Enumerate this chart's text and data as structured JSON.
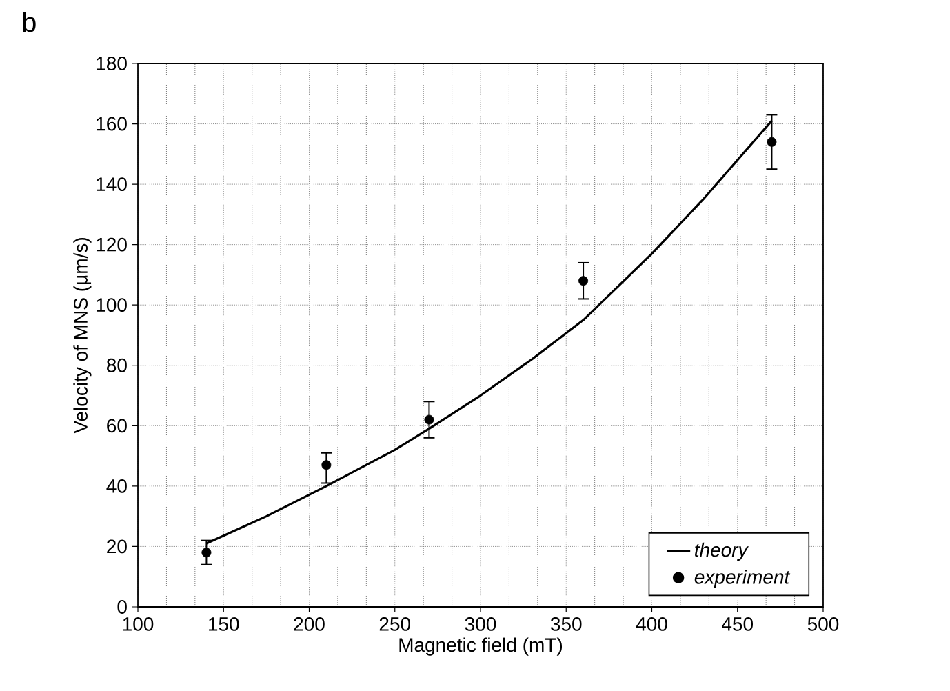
{
  "chart_data": {
    "type": "scatter",
    "xlabel": "Magnetic field (mT)",
    "ylabel": "Velocity of MNS (μm/s)",
    "annotations": [
      "b"
    ],
    "xlim": [
      100,
      500
    ],
    "xticks": [
      100,
      150,
      200,
      250,
      300,
      350,
      400,
      450,
      500
    ],
    "ylim": [
      0,
      180
    ],
    "yticks": [
      0,
      20,
      40,
      60,
      80,
      100,
      120,
      140,
      160,
      180
    ],
    "grid": true,
    "legend": "bottom right",
    "series": [
      {
        "name": "theory",
        "type": "line",
        "color": "#000000",
        "marker": "none",
        "line_style": "solid",
        "x": [
          140,
          175,
          210,
          250,
          270,
          300,
          330,
          360,
          400,
          430,
          470
        ],
        "values": [
          21,
          30,
          40,
          52,
          59,
          70,
          82,
          95,
          117,
          135,
          161
        ]
      },
      {
        "name": "experiment",
        "color": "#000000",
        "marker": "circle",
        "x": [
          140,
          210,
          270,
          360,
          470
        ],
        "values": [
          18,
          47,
          62,
          108,
          154
        ],
        "errors": [
          [
            14,
            22
          ],
          [
            41,
            51
          ],
          [
            56,
            68
          ],
          [
            102,
            114
          ],
          [
            145,
            163
          ]
        ]
      }
    ]
  }
}
